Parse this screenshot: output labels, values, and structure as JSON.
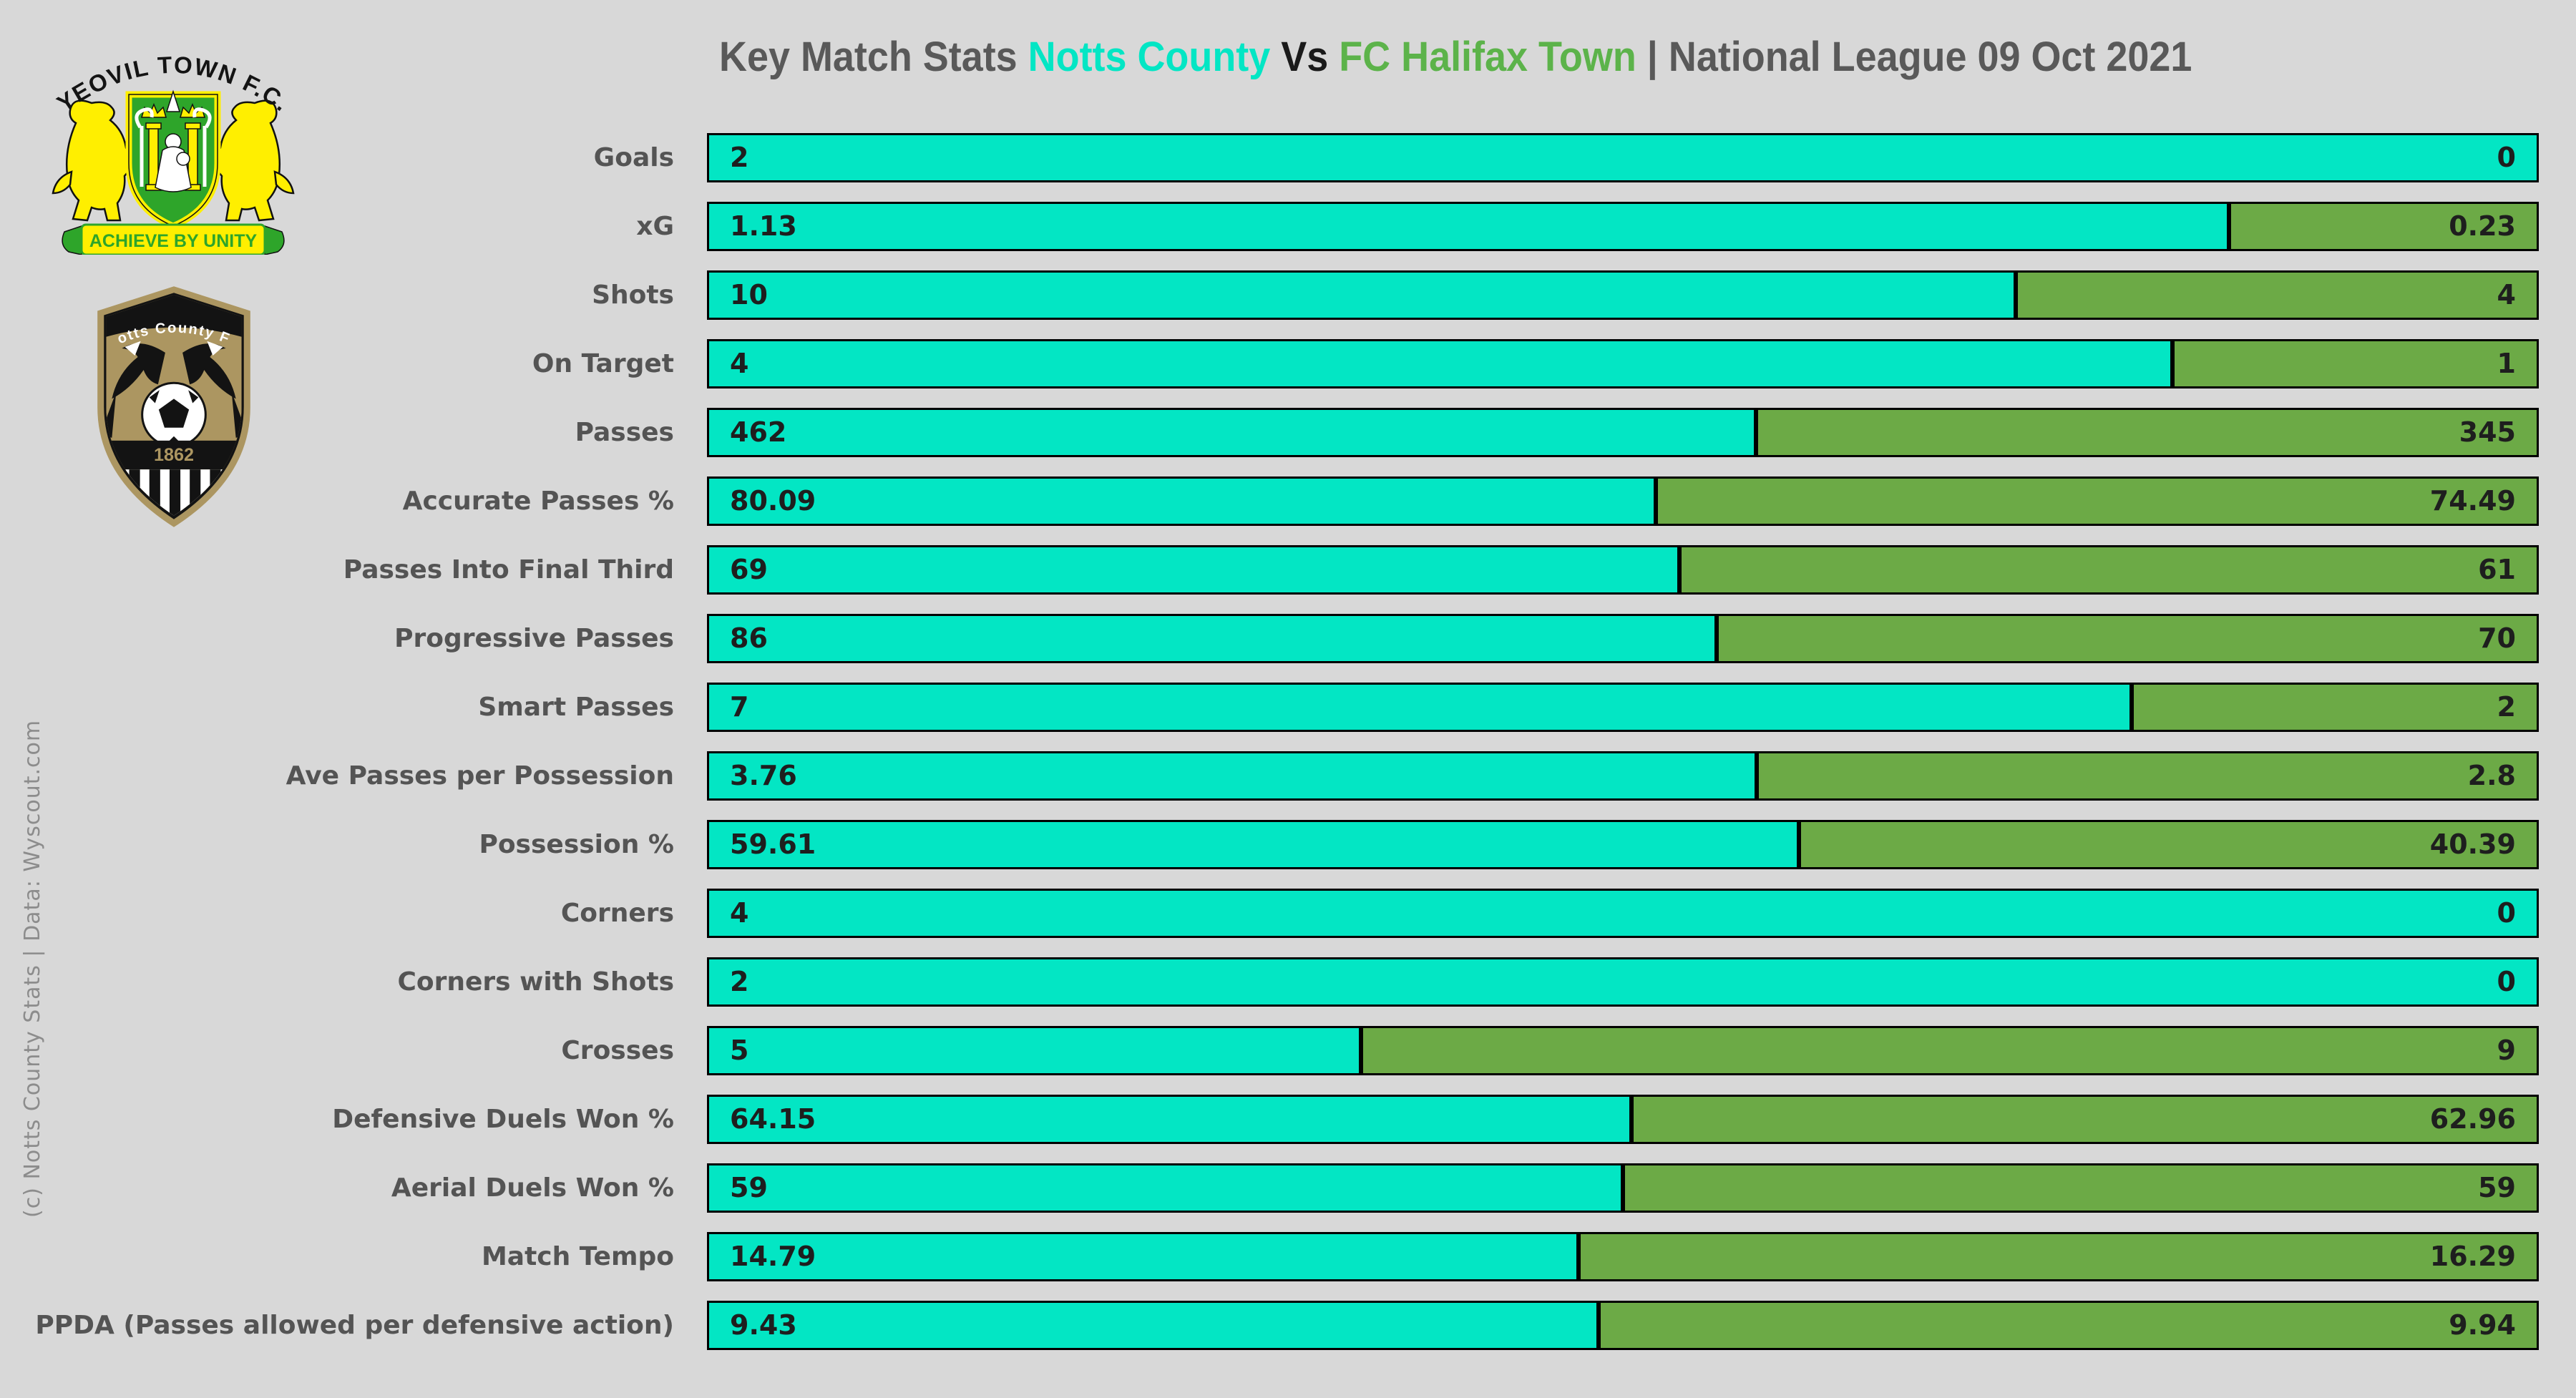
{
  "title": {
    "prefix": "Key Match Stats",
    "team_a": "Notts County",
    "vs": "Vs",
    "team_b": "FC Halifax Town",
    "suffix": "| National League 09 Oct 2021"
  },
  "credit": "(c) Notts County Stats | Data: Wyscout.com",
  "colors": {
    "background": "#D8D8D8",
    "team_a": "#03E6C4",
    "team_b": "#6CAA46",
    "title_team_b": "#5CB34A",
    "bar_border": "#000000",
    "title_text": "#595959",
    "label_text": "#545454",
    "value_text": "#1E1E1E",
    "credit_text": "#8C8C8C"
  },
  "logos": {
    "yeovil": {
      "name": "Yeovil Town F.C. crest",
      "arc_text": "YEOVIL TOWN F.C.",
      "motto": "ACHIEVE BY UNITY",
      "yellow": "#FFEF00",
      "green": "#2EA52A"
    },
    "notts": {
      "name": "Notts County FC crest",
      "arc_text": "Notts County FC",
      "year": "1862",
      "tan": "#AC9661",
      "black": "#131313"
    }
  },
  "chart_data": {
    "type": "bar",
    "orientation": "horizontal-diverging-stacked",
    "title": "Key Match Stats Notts County Vs FC Halifax Town | National League 09 Oct 2021",
    "note": "Each row is a 100% stacked bar: left segment = Notts County share, right segment = FC Halifax Town share of the row total",
    "categories": [
      "Goals",
      "xG",
      "Shots",
      "On Target",
      "Passes",
      "Accurate Passes %",
      "Passes Into Final Third",
      "Progressive Passes",
      "Smart Passes",
      "Ave Passes per Possession",
      "Possession %",
      "Corners",
      "Corners with Shots",
      "Crosses",
      "Defensive Duels Won %",
      "Aerial Duels Won %",
      "Match Tempo",
      "PPDA (Passes allowed per defensive action)"
    ],
    "series": [
      {
        "name": "Notts County",
        "color": "#03E6C4",
        "values": [
          2,
          1.13,
          10,
          4,
          462,
          80.09,
          69,
          86,
          7,
          3.76,
          59.61,
          4,
          2,
          5,
          64.15,
          59,
          14.79,
          9.43
        ]
      },
      {
        "name": "FC Halifax Town",
        "color": "#6CAA46",
        "values": [
          0,
          0.23,
          4,
          1,
          345,
          74.49,
          61,
          70,
          2,
          2.8,
          40.39,
          0,
          0,
          9,
          62.96,
          59,
          16.29,
          9.94
        ]
      }
    ],
    "legend_position": "title"
  }
}
